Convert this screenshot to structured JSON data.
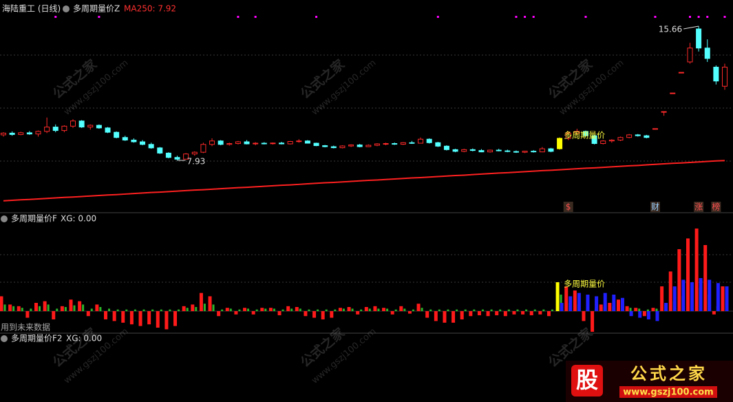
{
  "chart_data": {
    "type": "candlestick",
    "title": "海陆重工 (日线)",
    "indicator": "多周期量价Z",
    "ma_label": "MA250: 7.92",
    "ohlc": [
      [
        9.4,
        9.55,
        9.3,
        9.5
      ],
      [
        9.5,
        9.6,
        9.35,
        9.42
      ],
      [
        9.42,
        9.58,
        9.38,
        9.52
      ],
      [
        9.52,
        9.62,
        9.4,
        9.45
      ],
      [
        9.45,
        9.65,
        9.3,
        9.6
      ],
      [
        9.6,
        10.4,
        9.5,
        9.85
      ],
      [
        9.85,
        10.0,
        9.55,
        9.65
      ],
      [
        9.65,
        9.95,
        9.55,
        9.9
      ],
      [
        9.9,
        10.3,
        9.8,
        10.2
      ],
      [
        10.2,
        10.25,
        9.8,
        9.85
      ],
      [
        9.85,
        10.0,
        9.7,
        9.95
      ],
      [
        9.95,
        10.0,
        9.75,
        9.8
      ],
      [
        9.8,
        9.85,
        9.5,
        9.55
      ],
      [
        9.55,
        9.6,
        9.2,
        9.25
      ],
      [
        9.25,
        9.35,
        9.05,
        9.1
      ],
      [
        9.1,
        9.2,
        8.95,
        9.0
      ],
      [
        9.0,
        9.1,
        8.8,
        8.85
      ],
      [
        8.85,
        8.95,
        8.6,
        8.65
      ],
      [
        8.65,
        8.7,
        8.3,
        8.35
      ],
      [
        8.35,
        8.4,
        8.05,
        8.1
      ],
      [
        8.1,
        8.2,
        7.93,
        8.0
      ],
      [
        8.0,
        8.35,
        7.98,
        8.3
      ],
      [
        8.3,
        8.45,
        8.2,
        8.4
      ],
      [
        8.4,
        8.95,
        8.35,
        8.85
      ],
      [
        8.85,
        9.2,
        8.75,
        9.05
      ],
      [
        9.05,
        9.1,
        8.8,
        8.85
      ],
      [
        8.85,
        8.95,
        8.78,
        8.9
      ],
      [
        8.9,
        9.05,
        8.85,
        9.0
      ],
      [
        9.0,
        9.1,
        8.85,
        8.88
      ],
      [
        8.88,
        8.98,
        8.8,
        8.92
      ],
      [
        8.92,
        8.98,
        8.85,
        8.9
      ],
      [
        8.9,
        8.96,
        8.84,
        8.93
      ],
      [
        8.93,
        9.0,
        8.85,
        8.88
      ],
      [
        8.88,
        9.05,
        8.85,
        9.02
      ],
      [
        9.02,
        9.15,
        8.95,
        9.05
      ],
      [
        9.05,
        9.1,
        8.9,
        8.92
      ],
      [
        8.92,
        8.95,
        8.75,
        8.78
      ],
      [
        8.78,
        8.82,
        8.68,
        8.72
      ],
      [
        8.72,
        8.78,
        8.62,
        8.66
      ],
      [
        8.66,
        8.8,
        8.62,
        8.76
      ],
      [
        8.76,
        8.85,
        8.7,
        8.82
      ],
      [
        8.82,
        8.88,
        8.68,
        8.72
      ],
      [
        8.72,
        8.85,
        8.7,
        8.8
      ],
      [
        8.8,
        8.92,
        8.75,
        8.88
      ],
      [
        8.88,
        8.95,
        8.8,
        8.9
      ],
      [
        8.9,
        8.96,
        8.82,
        8.86
      ],
      [
        8.86,
        8.98,
        8.82,
        8.95
      ],
      [
        8.95,
        9.05,
        8.88,
        8.92
      ],
      [
        8.92,
        9.25,
        8.9,
        9.15
      ],
      [
        9.15,
        9.2,
        8.9,
        8.95
      ],
      [
        8.95,
        9.0,
        8.7,
        8.75
      ],
      [
        8.75,
        8.8,
        8.5,
        8.55
      ],
      [
        8.55,
        8.6,
        8.4,
        8.45
      ],
      [
        8.45,
        8.6,
        8.4,
        8.55
      ],
      [
        8.55,
        8.62,
        8.45,
        8.5
      ],
      [
        8.5,
        8.58,
        8.4,
        8.42
      ],
      [
        8.42,
        8.55,
        8.38,
        8.52
      ],
      [
        8.52,
        8.6,
        8.45,
        8.48
      ],
      [
        8.48,
        8.55,
        8.4,
        8.44
      ],
      [
        8.44,
        8.5,
        8.36,
        8.4
      ],
      [
        8.4,
        8.48,
        8.35,
        8.46
      ],
      [
        8.46,
        8.52,
        8.38,
        8.42
      ],
      [
        8.42,
        8.7,
        8.4,
        8.6
      ],
      [
        8.6,
        8.65,
        8.4,
        8.45
      ],
      [
        8.6,
        9.25,
        8.55,
        9.2
      ],
      [
        9.2,
        9.6,
        9.1,
        9.5
      ],
      [
        9.5,
        9.75,
        9.4,
        9.6
      ],
      [
        9.6,
        9.65,
        9.3,
        9.35
      ],
      [
        9.35,
        9.4,
        8.85,
        8.9
      ],
      [
        8.9,
        9.1,
        8.85,
        9.05
      ],
      [
        9.05,
        9.15,
        8.95,
        9.1
      ],
      [
        9.1,
        9.3,
        9.05,
        9.25
      ],
      [
        9.25,
        9.45,
        9.2,
        9.4
      ],
      [
        9.4,
        9.45,
        9.3,
        9.35
      ],
      [
        9.35,
        9.4,
        9.2,
        9.25
      ],
      [
        9.76,
        9.76,
        9.76,
        9.76
      ],
      [
        10.74,
        10.74,
        10.5,
        10.74
      ],
      [
        11.81,
        11.81,
        11.81,
        11.81
      ],
      [
        13.0,
        13.0,
        13.0,
        13.0
      ],
      [
        13.6,
        14.7,
        13.5,
        14.4
      ],
      [
        15.5,
        15.66,
        14.2,
        14.4
      ],
      [
        14.4,
        14.9,
        13.6,
        13.8
      ],
      [
        13.3,
        13.4,
        12.3,
        12.5
      ],
      [
        12.2,
        13.5,
        12.0,
        13.3
      ]
    ],
    "ma250": [
      5.6,
      5.63,
      5.66,
      5.68,
      5.71,
      5.74,
      5.77,
      5.8,
      5.82,
      5.85,
      5.88,
      5.91,
      5.94,
      5.96,
      5.99,
      6.02,
      6.05,
      6.08,
      6.1,
      6.13,
      6.16,
      6.19,
      6.22,
      6.24,
      6.27,
      6.3,
      6.33,
      6.36,
      6.38,
      6.41,
      6.44,
      6.47,
      6.5,
      6.52,
      6.55,
      6.58,
      6.61,
      6.64,
      6.66,
      6.69,
      6.72,
      6.75,
      6.78,
      6.8,
      6.83,
      6.86,
      6.89,
      6.92,
      6.94,
      6.97,
      7.0,
      7.03,
      7.06,
      7.08,
      7.11,
      7.14,
      7.17,
      7.2,
      7.22,
      7.25,
      7.28,
      7.31,
      7.34,
      7.36,
      7.39,
      7.42,
      7.45,
      7.48,
      7.5,
      7.53,
      7.56,
      7.59,
      7.62,
      7.64,
      7.67,
      7.7,
      7.73,
      7.76,
      7.78,
      7.81,
      7.84,
      7.87,
      7.9,
      7.92
    ],
    "ma_color": "#ff2020",
    "up_color": "#ff2a2a",
    "down_color": "#54ffff",
    "highlight_color": "#ffff00",
    "highlight_index": 64,
    "signal_dots": [
      6,
      11,
      27,
      29,
      36,
      50,
      59,
      60,
      61,
      67,
      75,
      79,
      80,
      81,
      83
    ],
    "signal_color": "#ff00ff",
    "annotations": {
      "high": "15.66",
      "low": "7.93",
      "signal": "多周期量价"
    },
    "events": [
      {
        "index": 65,
        "label": "$"
      },
      {
        "index": 75,
        "label": "财"
      },
      {
        "index": 80,
        "label": "涨"
      },
      {
        "index": 82,
        "label": "榜"
      }
    ],
    "panel2": {
      "title": "多周期量价F",
      "xg": "XG: 0.00",
      "note": "用到未来数据",
      "signal": "多周期量价",
      "series": [
        {
          "color": "#ff1a1a",
          "values": [
            18,
            8,
            6,
            -8,
            10,
            12,
            -10,
            6,
            14,
            12,
            -6,
            8,
            -10,
            -12,
            -14,
            -16,
            -18,
            -16,
            -20,
            -22,
            -18,
            6,
            8,
            22,
            18,
            -6,
            4,
            -4,
            4,
            -4,
            4,
            4,
            -5,
            6,
            5,
            -6,
            -8,
            -10,
            -8,
            4,
            5,
            -4,
            5,
            6,
            4,
            -4,
            6,
            -3,
            9,
            -8,
            -12,
            -14,
            -14,
            -10,
            -6,
            -5,
            -6,
            -5,
            -6,
            -4,
            -4,
            -5,
            -4,
            -6,
            35,
            30,
            25,
            -12,
            -25,
            8,
            10,
            14,
            6,
            4,
            -6,
            4,
            30,
            48,
            75,
            88,
            100,
            80,
            -4,
            30
          ]
        },
        {
          "color": "#2ab52a",
          "values": [
            8,
            6,
            4,
            3,
            6,
            8,
            3,
            5,
            7,
            8,
            3,
            5,
            3,
            2,
            2,
            2,
            2,
            2,
            2,
            2,
            2,
            4,
            5,
            9,
            8,
            2,
            3,
            2,
            3,
            2,
            3,
            3,
            2,
            3,
            3,
            2,
            2,
            2,
            2,
            3,
            3,
            2,
            3,
            3,
            3,
            2,
            3,
            2,
            4,
            2,
            2,
            2,
            2,
            2,
            2,
            2,
            2,
            2,
            2,
            2,
            2,
            2,
            2,
            2,
            20,
            10,
            8,
            4,
            3,
            5,
            6,
            8,
            4,
            3,
            2,
            3,
            8,
            12,
            18,
            22,
            28,
            20,
            6,
            14
          ]
        },
        {
          "color": "#2020ff",
          "values": [
            null,
            null,
            null,
            null,
            null,
            null,
            null,
            null,
            null,
            null,
            null,
            null,
            null,
            null,
            null,
            null,
            null,
            null,
            null,
            null,
            null,
            null,
            null,
            null,
            null,
            null,
            null,
            null,
            null,
            null,
            null,
            null,
            null,
            null,
            null,
            null,
            null,
            null,
            null,
            null,
            null,
            null,
            null,
            null,
            null,
            null,
            null,
            null,
            null,
            null,
            null,
            null,
            null,
            null,
            null,
            null,
            null,
            null,
            null,
            null,
            null,
            null,
            null,
            null,
            10,
            18,
            22,
            20,
            18,
            22,
            20,
            16,
            -6,
            -8,
            -10,
            -12,
            10,
            30,
            38,
            35,
            40,
            38,
            34,
            30
          ]
        }
      ]
    },
    "panel3": {
      "title": "多周期量价F2",
      "xg": "XG: 0.00"
    },
    "watermark": [
      "公式之家",
      "www.gszj100.com"
    ],
    "logo": {
      "badge": "股",
      "name": "公式之家",
      "url": "www.gszj100.com"
    }
  }
}
